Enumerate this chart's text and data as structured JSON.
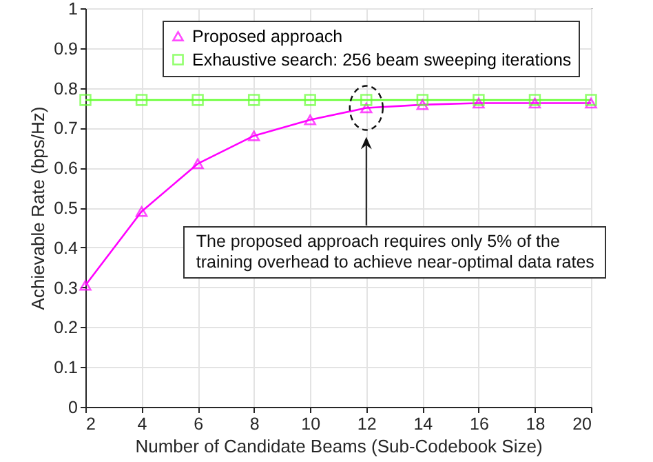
{
  "chart_data": {
    "type": "line",
    "xlabel": "Number of Candidate Beams (Sub-Codebook Size)",
    "ylabel": "Achievable Rate (bps/Hz)",
    "x": [
      2,
      4,
      6,
      8,
      10,
      12,
      14,
      16,
      18,
      20
    ],
    "series": [
      {
        "name": "Proposed approach",
        "color": "#ff00ff",
        "marker": "triangle",
        "values": [
          0.305,
          0.49,
          0.61,
          0.68,
          0.72,
          0.75,
          0.758,
          0.762,
          0.762,
          0.762
        ]
      },
      {
        "name": "Exhaustive search: 256 beam sweeping iterations",
        "color": "#66ff33",
        "marker": "square",
        "values": [
          0.77,
          0.77,
          0.77,
          0.77,
          0.77,
          0.77,
          0.77,
          0.77,
          0.77,
          0.77
        ]
      }
    ],
    "xlim": [
      2,
      20
    ],
    "xticks": [
      2,
      4,
      6,
      8,
      10,
      12,
      14,
      16,
      18,
      20
    ],
    "ylim": [
      0,
      1
    ],
    "yticks": [
      0,
      0.1,
      0.2,
      0.3,
      0.4,
      0.5,
      0.6,
      0.7,
      0.8,
      0.9,
      1
    ],
    "grid": true,
    "legend": "top right",
    "line_style": "solid",
    "annotations": [
      "The proposed approach requires only 5% of the\ntraining overhead to achieve near-optimal data rates"
    ]
  }
}
